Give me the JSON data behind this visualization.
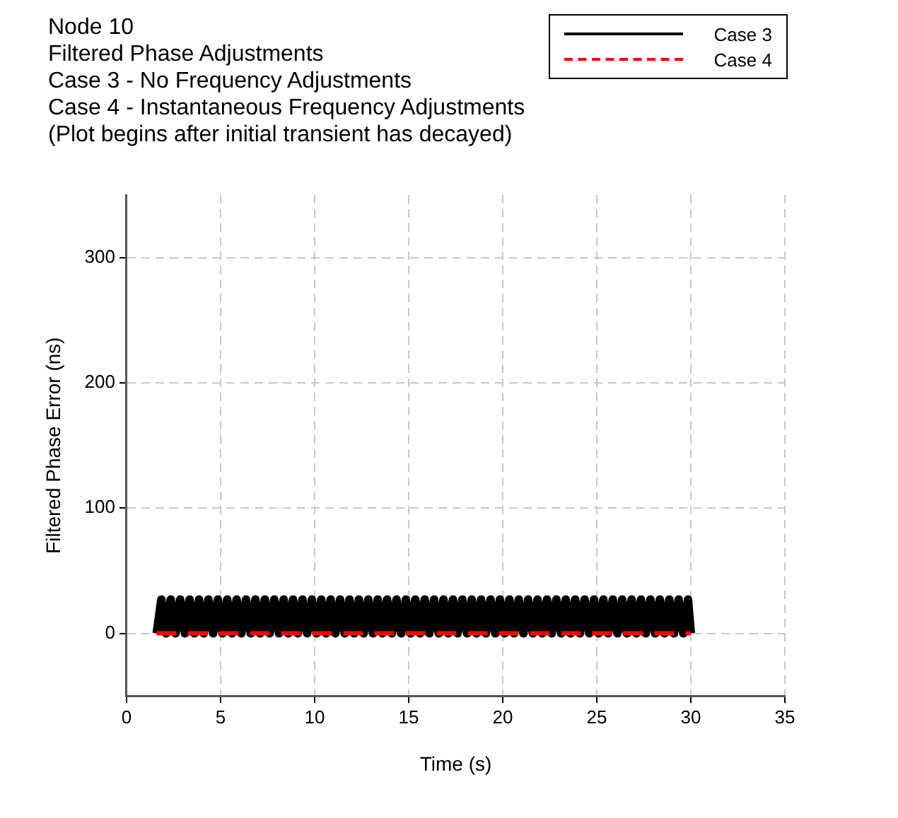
{
  "chart_data": {
    "type": "line",
    "title": "Node 10",
    "subtitle": "Filtered Phase Adjustments",
    "annotations": [
      "Case 3 - No Frequency Adjustments",
      "Case 4 - Instantaneous Frequency Adjustments",
      "(Plot begins after initial transient has decayed)"
    ],
    "xlabel": "Time (s)",
    "ylabel": "Filtered Phase Error (ns)",
    "xlim": [
      0,
      35
    ],
    "xticks": [
      0,
      5,
      10,
      15,
      20,
      25,
      30,
      35
    ],
    "ylim": [
      -50,
      350
    ],
    "yticks": [
      0,
      100,
      200,
      300
    ],
    "grid": true,
    "legend": "top right",
    "marker": "none",
    "series": [
      {
        "name": "Case 3",
        "color": "#000000",
        "line_style": "solid",
        "x": [
          1.6,
          1.85,
          2.1,
          2.35,
          2.6,
          2.85,
          3.1,
          3.35,
          3.6,
          3.85,
          4.1,
          4.35,
          4.6,
          4.85,
          5.1,
          5.35,
          5.6,
          5.85,
          6.1,
          6.35,
          6.6,
          6.85,
          7.1,
          7.35,
          7.6,
          7.85,
          8.1,
          8.35,
          8.6,
          8.85,
          9.1,
          9.35,
          9.6,
          9.85,
          10.1,
          10.35,
          10.6,
          10.85,
          11.1,
          11.35,
          11.6,
          11.85,
          12.1,
          12.35,
          12.6,
          12.85,
          13.1,
          13.35,
          13.6,
          13.85,
          14.1,
          14.35,
          14.6,
          14.85,
          15.1,
          15.35,
          15.6,
          15.85,
          16.1,
          16.35,
          16.6,
          16.85,
          17.1,
          17.35,
          17.6,
          17.85,
          18.1,
          18.35,
          18.6,
          18.85,
          19.1,
          19.35,
          19.6,
          19.85,
          20.1,
          20.35,
          20.6,
          20.85,
          21.1,
          21.35,
          21.6,
          21.85,
          22.1,
          22.35,
          22.6,
          22.85,
          23.1,
          23.35,
          23.6,
          23.85,
          24.1,
          24.35,
          24.6,
          24.85,
          25.1,
          25.35,
          25.6,
          25.85,
          26.1,
          26.35,
          26.6,
          26.85,
          27.1,
          27.35,
          27.6,
          27.85,
          28.1,
          28.35,
          28.6,
          28.85,
          29.1,
          29.35,
          29.6,
          29.85,
          30
        ],
        "values": [
          0,
          27,
          0,
          27,
          0,
          27,
          0,
          27,
          0,
          27,
          0,
          27,
          0,
          27,
          0,
          27,
          0,
          27,
          0,
          27,
          0,
          27,
          0,
          27,
          0,
          27,
          0,
          27,
          0,
          27,
          0,
          27,
          0,
          27,
          0,
          27,
          0,
          27,
          0,
          27,
          0,
          27,
          0,
          27,
          0,
          27,
          0,
          27,
          0,
          27,
          0,
          27,
          0,
          27,
          0,
          27,
          0,
          27,
          0,
          27,
          0,
          27,
          0,
          27,
          0,
          27,
          0,
          27,
          0,
          27,
          0,
          27,
          0,
          27,
          0,
          27,
          0,
          27,
          0,
          27,
          0,
          27,
          0,
          27,
          0,
          27,
          0,
          27,
          0,
          27,
          0,
          27,
          0,
          27,
          0,
          27,
          0,
          27,
          0,
          27,
          0,
          27,
          0,
          27,
          0,
          27,
          0,
          27,
          0,
          27,
          0,
          27,
          0,
          27,
          0
        ]
      },
      {
        "name": "Case 4",
        "color": "#ff0000",
        "line_style": "dashed",
        "x": [
          1.6,
          30
        ],
        "values": [
          0,
          0
        ]
      }
    ]
  }
}
